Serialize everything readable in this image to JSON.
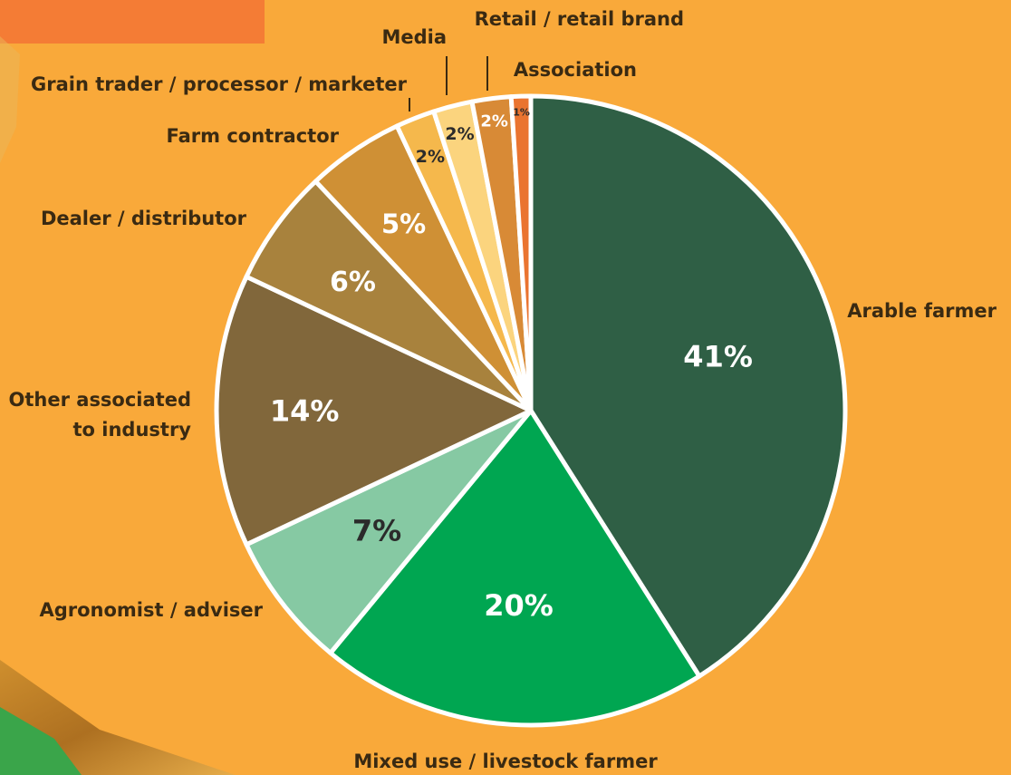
{
  "chart_data": {
    "type": "pie",
    "title": "",
    "slices": [
      {
        "label": "Arable farmer",
        "value": 41,
        "value_label": "41%",
        "color": "#2f5f45"
      },
      {
        "label": "Mixed use / livestock farmer",
        "value": 20,
        "value_label": "20%",
        "color": "#00a651"
      },
      {
        "label": "Agronomist / adviser",
        "value": 7,
        "value_label": "7%",
        "color": "#86c9a3"
      },
      {
        "label": "Other associated to industry",
        "value": 14,
        "value_label": "14%",
        "color": "#81673b"
      },
      {
        "label": "Dealer / distributor",
        "value": 6,
        "value_label": "6%",
        "color": "#a8823d"
      },
      {
        "label": "Farm contractor",
        "value": 5,
        "value_label": "5%",
        "color": "#cf9035"
      },
      {
        "label": "Grain trader / processor / marketer",
        "value": 2,
        "value_label": "2%",
        "color": "#f5b84c"
      },
      {
        "label": "Media",
        "value": 2,
        "value_label": "2%",
        "color": "#fbd47e"
      },
      {
        "label": "Retail / retail brand",
        "value": 2,
        "value_label": "2%",
        "color": "#d88a36"
      },
      {
        "label": "Association",
        "value": 1,
        "value_label": "1%",
        "color": "#ea7430"
      }
    ],
    "legend": "none"
  },
  "colors": {
    "background": "#f9a93a",
    "banner": "#f47c35",
    "slice_border": "#ffffff",
    "label_text": "#3a2a12"
  }
}
